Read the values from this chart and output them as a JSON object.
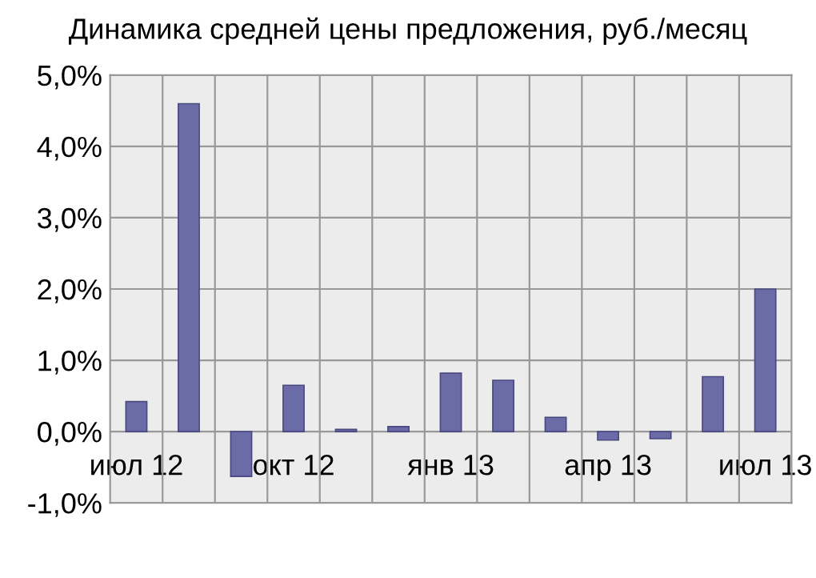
{
  "chart_data": {
    "type": "bar",
    "title": "Динамика средней цены предложения, руб./месяц",
    "categories": [
      "июл 12",
      null,
      null,
      "окт 12",
      null,
      null,
      "янв 13",
      null,
      null,
      "апр 13",
      null,
      null,
      "июл 13"
    ],
    "values": [
      0.42,
      4.6,
      -0.63,
      0.65,
      0.03,
      0.07,
      0.82,
      0.72,
      0.2,
      -0.12,
      -0.1,
      0.77,
      2.0
    ],
    "color": "#6b6ba8",
    "ylim": [
      -1,
      5
    ],
    "yticks": [
      {
        "value": -1,
        "label": "-1,0%"
      },
      {
        "value": 0,
        "label": "0,0%"
      },
      {
        "value": 1,
        "label": "1,0%"
      },
      {
        "value": 2,
        "label": "2,0%"
      },
      {
        "value": 3,
        "label": "3,0%"
      },
      {
        "value": 4,
        "label": "4,0%"
      },
      {
        "value": 5,
        "label": "5,0%"
      }
    ],
    "grid": true
  }
}
